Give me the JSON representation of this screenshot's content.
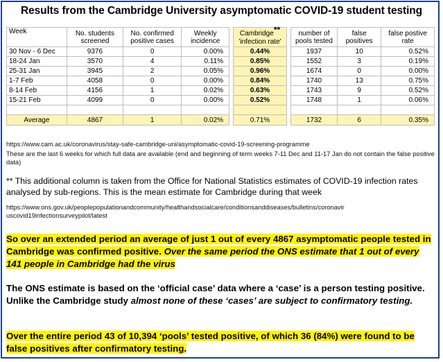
{
  "title": "Results from the Cambridge University asymptomatic COVID-19 student testing",
  "table": {
    "headers": {
      "week": "Week",
      "screened_line1": "No. students",
      "screened_line2": "screened",
      "positive_line1": "No. confirmed",
      "positive_line2": "positive cases",
      "incidence_line1": "Weekly",
      "incidence_line2": "incidence",
      "cambridge_line1": "Cambridge",
      "cambridge_stars": "**",
      "cambridge_line2": "'infection rate'",
      "pools_line1": "number of",
      "pools_line2": "pools tested",
      "false_pos_line1": "false",
      "false_pos_line2": "positives",
      "fp_rate_line1": "false postive",
      "fp_rate_line2": "rate"
    },
    "rows": [
      {
        "week": "30 Nov - 6 Dec",
        "screened": "9376",
        "positive": "0",
        "incidence": "0.00%",
        "cambridge": "0.44%",
        "pools": "1937",
        "false_pos": "10",
        "fp_rate": "0.52%"
      },
      {
        "week": "18-24 Jan",
        "screened": "3570",
        "positive": "4",
        "incidence": "0.11%",
        "cambridge": "0.85%",
        "pools": "1552",
        "false_pos": "3",
        "fp_rate": "0.19%"
      },
      {
        "week": "25-31 Jan",
        "screened": "3945",
        "positive": "2",
        "incidence": "0.05%",
        "cambridge": "0.96%",
        "pools": "1674",
        "false_pos": "0",
        "fp_rate": "0.00%"
      },
      {
        "week": "1-7 Feb",
        "screened": "4058",
        "positive": "0",
        "incidence": "0.00%",
        "cambridge": "0.84%",
        "pools": "1740",
        "false_pos": "13",
        "fp_rate": "0.75%"
      },
      {
        "week": "8-14 Feb",
        "screened": "4156",
        "positive": "1",
        "incidence": "0.02%",
        "cambridge": "0.63%",
        "pools": "1743",
        "false_pos": "9",
        "fp_rate": "0.52%"
      },
      {
        "week": "15-21 Feb",
        "screened": "4099",
        "positive": "0",
        "incidence": "0.00%",
        "cambridge": "0.52%",
        "pools": "1748",
        "false_pos": "1",
        "fp_rate": "0.06%"
      }
    ],
    "average": {
      "label": "Average",
      "screened": "4867",
      "positive": "1",
      "incidence": "0.02%",
      "cambridge": "0.71%",
      "pools": "1732",
      "false_pos": "6",
      "fp_rate": "0.35%"
    }
  },
  "notes": {
    "source_url_1": "https://www.cam.ac.uk/coronavirus/stay-safe-cambridge-uni/asymptomatic-covid-19-screening-programme",
    "source_note": "These are the last 6 weeks for which full data are available (end and beginning of term weeks 7-11 Dec and 11-17 Jan do not contain the false positive data)",
    "ons_note": "** This additional column is taken from the Office for National Statistics estimates of COVID-19 infection rates analysed by sub-regions. This is the mean estimate for Cambridge during that week",
    "source_url_2_line1": "https://www.ons.gov.uk/peoplepopulationandcommunity/healthandsocialcare/conditionsanddiseases/bulletins/coronavir",
    "source_url_2_line2": "uscovid19infectionsurveypilot/latest"
  },
  "summary": {
    "p1_normal": "So over an extended period an average of just 1 out of every 4867 asymptomatic people tested in Cambridge was confirmed positive.",
    "p1_italic": "Over the same period the ONS estimate that 1 out of every 141 people in Cambridge had the virus",
    "p2_normal": "The ONS estimate is based on the ‘official case’ data where a ‘case’ is a person testing positive.  Unlike the Cambridge study",
    "p2_italic": "almost none of these ‘cases’ are subject to confirmatory testing.",
    "p3": "Over the entire period 43 of 10,394 ‘pools’ tested positive, of which 36 (84%) were found to be false positives after confirmatory testing."
  },
  "colors": {
    "frame": "#1f3f86",
    "highlight_cell": "#fdf4b5",
    "highlight_text": "#fff200"
  }
}
